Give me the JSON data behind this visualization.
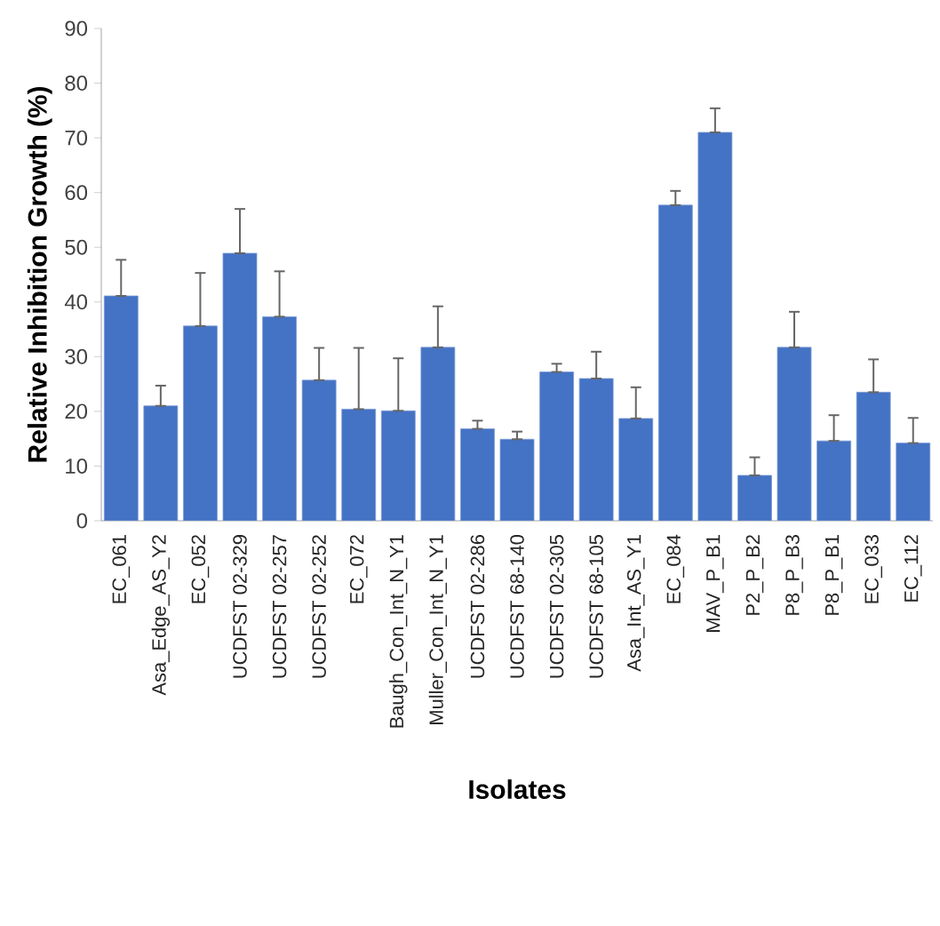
{
  "chart_data": {
    "type": "bar",
    "xlabel": "Isolates",
    "ylabel": "Relative Inhibition Growth (%)",
    "categories": [
      "EC_061",
      "Asa_Edge_AS_Y2",
      "EC_052",
      "UCDFST 02-329",
      "UCDFST 02-257",
      "UCDFST 02-252",
      "EC_072",
      "Baugh_Con_Int_N_Y1",
      "Muller_Con_Int_N_Y1",
      "UCDFST 02-286",
      "UCDFST 68-140",
      "UCDFST 02-305",
      "UCDFST 68-105",
      "Asa_Int_AS_Y1",
      "EC_084",
      "MAV_P_B1",
      "P2_P_B2",
      "P8_P_B3",
      "P8_P_B1",
      "EC_033",
      "EC_112"
    ],
    "values": [
      41.1,
      21.0,
      35.6,
      48.9,
      37.3,
      25.7,
      20.4,
      20.1,
      31.7,
      16.8,
      14.9,
      27.2,
      26.0,
      18.7,
      57.7,
      71.0,
      8.3,
      31.7,
      14.6,
      23.5,
      14.2
    ],
    "errors": [
      [
        41.1,
        47.7
      ],
      [
        21.0,
        24.7
      ],
      [
        35.6,
        45.3
      ],
      [
        48.9,
        57.0
      ],
      [
        37.3,
        45.6
      ],
      [
        25.7,
        31.6
      ],
      [
        20.4,
        31.6
      ],
      [
        20.1,
        29.7
      ],
      [
        31.7,
        39.2
      ],
      [
        16.8,
        18.3
      ],
      [
        14.9,
        16.3
      ],
      [
        27.2,
        28.7
      ],
      [
        26.0,
        30.9
      ],
      [
        18.7,
        24.4
      ],
      [
        57.7,
        60.3
      ],
      [
        71.0,
        75.4
      ],
      [
        8.3,
        11.6
      ],
      [
        31.7,
        38.2
      ],
      [
        14.6,
        19.3
      ],
      [
        23.5,
        29.5
      ],
      [
        14.2,
        18.8
      ]
    ],
    "color": "#4472c4",
    "ylim": [
      0,
      90
    ],
    "yticks": [
      0,
      10,
      20,
      30,
      40,
      50,
      60,
      70,
      80,
      90
    ]
  }
}
